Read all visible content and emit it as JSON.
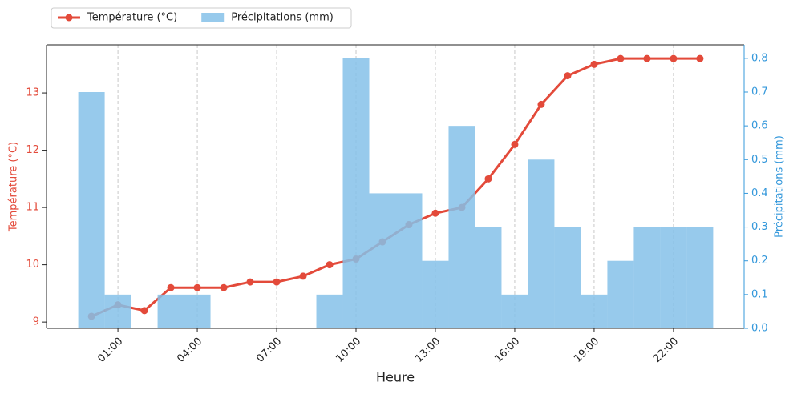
{
  "chart_data": {
    "type": "bar-line",
    "xlabel": "Heure",
    "ylabel": "Température (°C)",
    "y2label": "Précipitations (mm)",
    "x": [
      0,
      1,
      2,
      3,
      4,
      5,
      6,
      7,
      8,
      9,
      10,
      11,
      12,
      13,
      14,
      15,
      16,
      17,
      18,
      19,
      20,
      21,
      22,
      23
    ],
    "xlim": [
      -1.7,
      24.67
    ],
    "xticks": [
      {
        "value": 1,
        "label": "01:00"
      },
      {
        "value": 4,
        "label": "04:00"
      },
      {
        "value": 7,
        "label": "07:00"
      },
      {
        "value": 10,
        "label": "10:00"
      },
      {
        "value": 13,
        "label": "13:00"
      },
      {
        "value": 16,
        "label": "16:00"
      },
      {
        "value": 19,
        "label": "19:00"
      },
      {
        "value": 22,
        "label": "22:00"
      }
    ],
    "ylim": [
      8.89,
      13.84
    ],
    "yticks": [
      9,
      10,
      11,
      12,
      13
    ],
    "y2lim": [
      0,
      0.84
    ],
    "y2ticks": [
      {
        "value": 0,
        "label": "0.0"
      },
      {
        "value": 0.1,
        "label": "0.1"
      },
      {
        "value": 0.2,
        "label": "0.2"
      },
      {
        "value": 0.3,
        "label": "0.3"
      },
      {
        "value": 0.4,
        "label": "0.4"
      },
      {
        "value": 0.5,
        "label": "0.5"
      },
      {
        "value": 0.6,
        "label": "0.6"
      },
      {
        "value": 0.7,
        "label": "0.7"
      },
      {
        "value": 0.8,
        "label": "0.8"
      }
    ],
    "x_grid": true,
    "legend": "top-left",
    "series": [
      {
        "name": "Température (°C)",
        "color": "#e34a3a",
        "type": "line",
        "values": [
          9.1,
          9.3,
          9.2,
          9.6,
          9.6,
          9.6,
          9.7,
          9.7,
          9.8,
          10.0,
          10.1,
          10.4,
          10.7,
          10.9,
          11.0,
          11.5,
          12.1,
          12.8,
          13.3,
          13.5,
          13.6,
          13.6,
          13.6,
          13.6
        ]
      },
      {
        "name": "Précipitations (mm)",
        "color": "#85c1e9",
        "type": "bar",
        "axis": "y2",
        "values": [
          0.7,
          0.1,
          0,
          0.1,
          0.1,
          0,
          0,
          0,
          0,
          0.1,
          0.8,
          0.4,
          0.4,
          0.2,
          0.6,
          0.3,
          0.1,
          0.5,
          0.3,
          0.1,
          0.2,
          0.3,
          0.3,
          0.3
        ]
      }
    ]
  }
}
